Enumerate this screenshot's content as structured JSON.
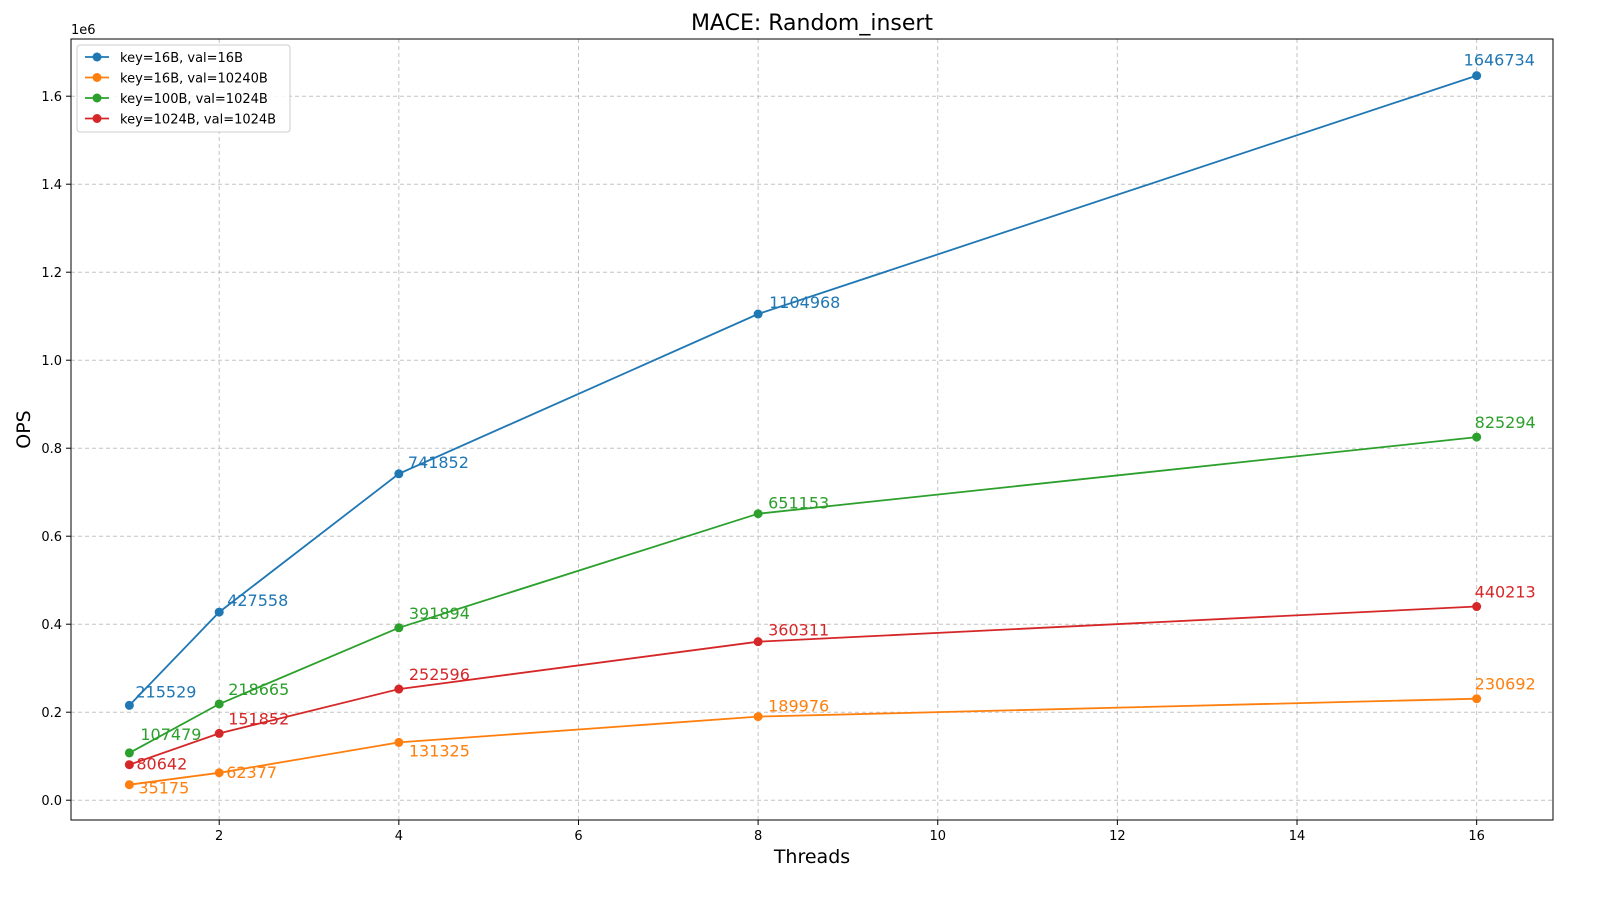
{
  "chart_data": {
    "type": "line",
    "title": "MACE: Random_insert",
    "xlabel": "Threads",
    "ylabel": "OPS",
    "y_scale_label": "1e6",
    "x": [
      1,
      2,
      4,
      8,
      16
    ],
    "xlim": [
      0.35,
      16.85
    ],
    "ylim": [
      -45000,
      1730000
    ],
    "x_ticks": [
      2,
      4,
      6,
      8,
      10,
      12,
      14,
      16
    ],
    "x_tick_labels": [
      "2",
      "4",
      "6",
      "8",
      "10",
      "12",
      "14",
      "16"
    ],
    "y_ticks": [
      0,
      200000,
      400000,
      600000,
      800000,
      1000000,
      1200000,
      1400000,
      1600000
    ],
    "y_tick_labels": [
      "0.0",
      "0.2",
      "0.4",
      "0.6",
      "0.8",
      "1.0",
      "1.2",
      "1.4",
      "1.6"
    ],
    "grid": true,
    "legend_position": "top-left",
    "series": [
      {
        "name": "key=16B, val=16B",
        "color": "#1f77b4",
        "values": [
          215529,
          427558,
          741852,
          1104968,
          1646734
        ],
        "labels": [
          "215529",
          "427558",
          "741852",
          "1104968",
          "1646734"
        ]
      },
      {
        "name": "key=16B, val=10240B",
        "color": "#ff7f0e",
        "values": [
          35175,
          62377,
          131325,
          189976,
          230692
        ],
        "labels": [
          "35175",
          "62377",
          "131325",
          "189976",
          "230692"
        ]
      },
      {
        "name": "key=100B, val=1024B",
        "color": "#2ca02c",
        "values": [
          107479,
          218665,
          391894,
          651153,
          825294
        ],
        "labels": [
          "107479",
          "218665",
          "391894",
          "651153",
          "825294"
        ]
      },
      {
        "name": "key=1024B, val=1024B",
        "color": "#d62728",
        "values": [
          80642,
          151852,
          252596,
          360311,
          440213
        ],
        "labels": [
          "80642",
          "151852",
          "252596",
          "360311",
          "440213"
        ]
      }
    ]
  }
}
